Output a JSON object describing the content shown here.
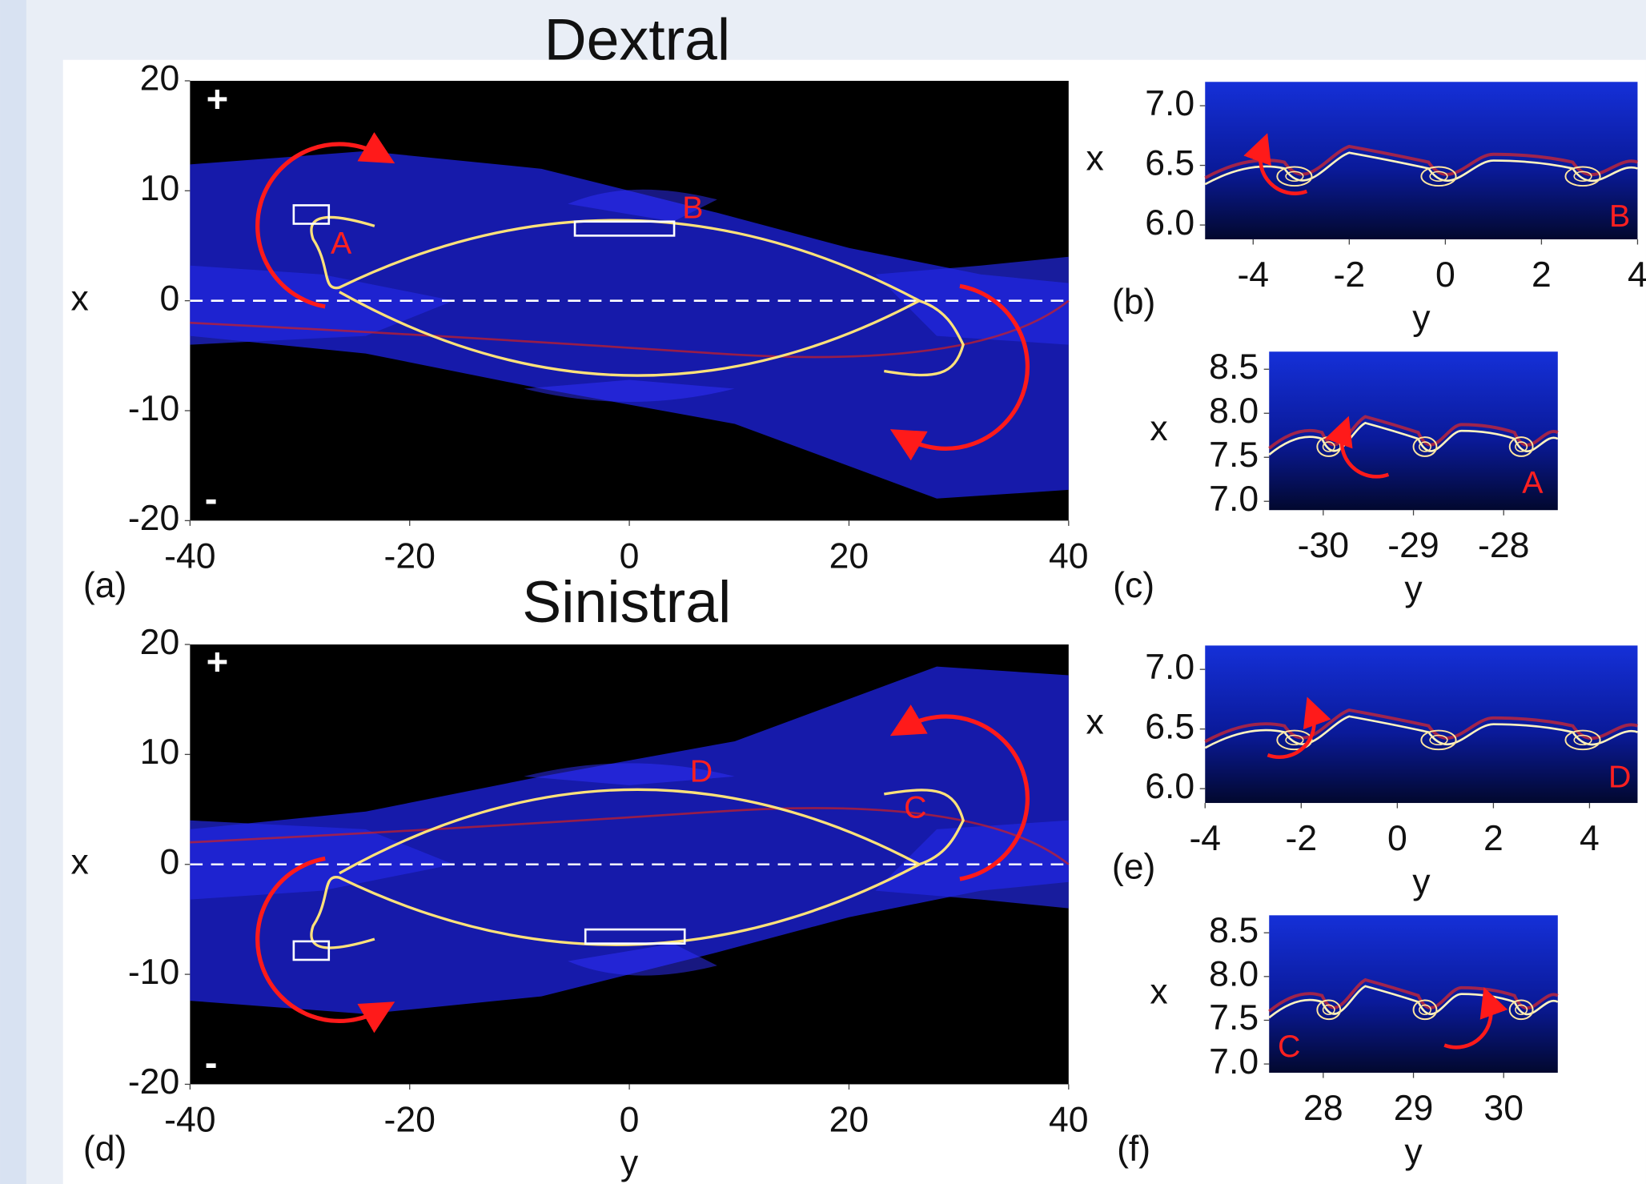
{
  "chart_data": [
    {
      "type": "image",
      "title": "Dextral",
      "panel_label": "(a)",
      "ylabel": "x",
      "xlim": [
        -40,
        40
      ],
      "ylim": [
        -20,
        20
      ],
      "xticks": [
        -40,
        -20,
        0,
        20,
        40
      ],
      "yticks": [
        -20,
        -10,
        0,
        10,
        20
      ],
      "annotations": [
        "+",
        "-",
        "A",
        "B"
      ]
    },
    {
      "type": "image",
      "panel_label": "(b)",
      "xlabel": "y",
      "ylabel": "x",
      "xlim": [
        -5,
        4
      ],
      "ylim": [
        5.88,
        7.2
      ],
      "xticks": [
        -4,
        -2,
        0,
        2,
        4
      ],
      "yticks": [
        {
          "value": 6,
          "label": "6.0"
        },
        6.5,
        {
          "value": 7,
          "label": "7.0"
        }
      ],
      "annotations": [
        "B"
      ]
    },
    {
      "type": "image",
      "panel_label": "(c)",
      "xlabel": "y",
      "ylabel": "x",
      "xlim": [
        -30.6,
        -27.4
      ],
      "ylim": [
        6.9,
        8.7
      ],
      "xticks": [
        -30,
        -29,
        -28
      ],
      "yticks": [
        {
          "value": 7,
          "label": "7.0"
        },
        7.5,
        {
          "value": 8,
          "label": "8.0"
        },
        8.5
      ],
      "annotations": [
        "A"
      ]
    },
    {
      "type": "image",
      "title": "Sinistral",
      "panel_label": "(d)",
      "xlabel": "y",
      "ylabel": "x",
      "xlim": [
        -40,
        40
      ],
      "ylim": [
        -20,
        20
      ],
      "xticks": [
        -40,
        -20,
        0,
        20,
        40
      ],
      "yticks": [
        -20,
        -10,
        0,
        10,
        20
      ],
      "annotations": [
        "+",
        "-",
        "D",
        "C"
      ]
    },
    {
      "type": "image",
      "panel_label": "(e)",
      "xlabel": "y",
      "ylabel": "x",
      "xlim": [
        -4,
        5
      ],
      "ylim": [
        5.88,
        7.2
      ],
      "xticks": [
        -4,
        -2,
        0,
        2,
        4
      ],
      "yticks": [
        {
          "value": 6,
          "label": "6.0"
        },
        6.5,
        {
          "value": 7,
          "label": "7.0"
        }
      ],
      "annotations": [
        "D"
      ]
    },
    {
      "type": "image",
      "panel_label": "(f)",
      "xlabel": "y",
      "ylabel": "x",
      "xlim": [
        27.4,
        30.6
      ],
      "ylim": [
        6.9,
        8.7
      ],
      "xticks": [
        28,
        29,
        30
      ],
      "yticks": [
        {
          "value": 7,
          "label": "7.0"
        },
        7.5,
        {
          "value": 8,
          "label": "8.0"
        },
        8.5
      ],
      "annotations": [
        "C"
      ]
    }
  ]
}
